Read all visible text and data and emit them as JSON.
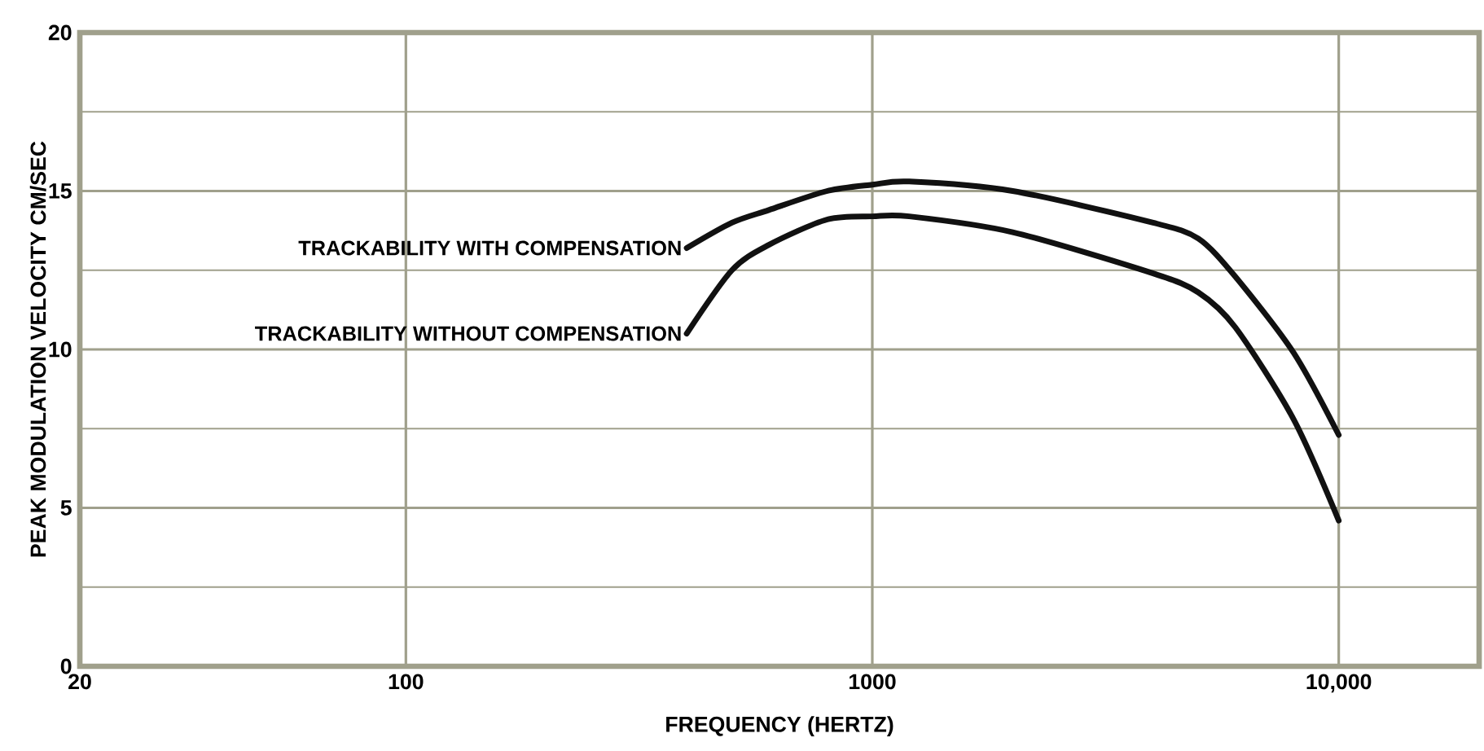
{
  "chart_data": {
    "type": "line",
    "xlabel": "FREQUENCY (HERTZ)",
    "ylabel": "PEAK MODULATION VELOCITY CM/SEC",
    "log": "x",
    "grid": true,
    "legend": false,
    "marker": "none",
    "line_style": "solid",
    "xlim": [
      20,
      20000
    ],
    "ylim": [
      0,
      20
    ],
    "xticks": [
      20,
      100,
      1000,
      {
        "value": 10000,
        "label": "10,000"
      }
    ],
    "yticks": [
      0,
      5,
      10,
      15,
      20
    ],
    "x": [
      400,
      500,
      600,
      800,
      1000,
      1200,
      2000,
      4000,
      5000,
      6000,
      8000,
      10000
    ],
    "series": [
      {
        "name": "TRACKABILITY WITH COMPENSATION",
        "color": "#111111",
        "values": [
          13.2,
          14.0,
          14.4,
          15.0,
          15.2,
          15.3,
          15.0,
          14.0,
          13.5,
          12.3,
          9.9,
          7.3
        ]
      },
      {
        "name": "TRACKABILITY WITHOUT COMPENSATION",
        "color": "#111111",
        "values": [
          10.5,
          12.5,
          13.3,
          14.1,
          14.2,
          14.2,
          13.7,
          12.4,
          11.8,
          10.7,
          7.8,
          4.6
        ]
      }
    ]
  }
}
